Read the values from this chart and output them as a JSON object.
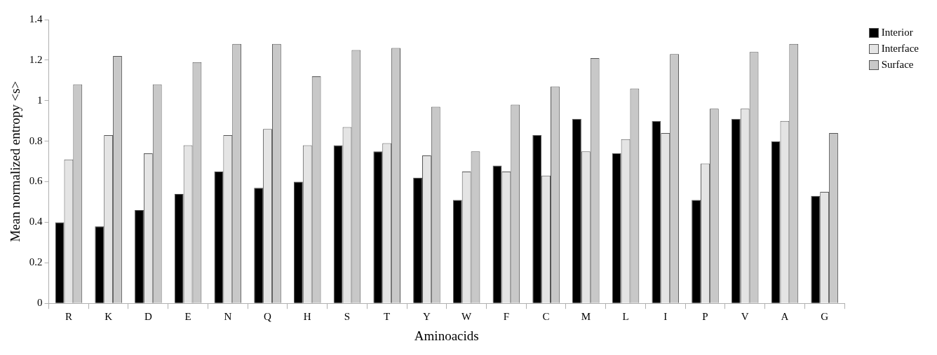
{
  "chart_data": {
    "type": "bar",
    "xlabel": "Aminoacids",
    "ylabel": "Mean normalized entropy <s>",
    "categories": [
      "R",
      "K",
      "D",
      "E",
      "N",
      "Q",
      "H",
      "S",
      "T",
      "Y",
      "W",
      "F",
      "C",
      "M",
      "L",
      "I",
      "P",
      "V",
      "A",
      "G"
    ],
    "series": [
      {
        "name": "Interior",
        "color": "#000000",
        "values": [
          0.4,
          0.38,
          0.46,
          0.54,
          0.65,
          0.57,
          0.6,
          0.78,
          0.75,
          0.62,
          0.51,
          0.68,
          0.83,
          0.91,
          0.74,
          0.9,
          0.51,
          0.91,
          0.8,
          0.53
        ]
      },
      {
        "name": "Interface",
        "color": "#e4e4e4",
        "values": [
          0.71,
          0.83,
          0.74,
          0.78,
          0.83,
          0.86,
          0.78,
          0.87,
          0.79,
          0.73,
          0.65,
          0.65,
          0.63,
          0.75,
          0.81,
          0.84,
          0.69,
          0.96,
          0.9,
          0.55
        ]
      },
      {
        "name": "Surface",
        "color": "#c8c8c8",
        "values": [
          1.08,
          1.22,
          1.08,
          1.19,
          1.28,
          1.28,
          1.12,
          1.25,
          1.26,
          0.97,
          0.75,
          0.98,
          1.07,
          1.21,
          1.06,
          1.23,
          0.96,
          1.24,
          1.28,
          0.84
        ]
      }
    ],
    "ylim": [
      0,
      1.4
    ],
    "yticks": [
      0,
      0.2,
      0.4,
      0.6,
      0.8,
      1,
      1.2,
      1.4
    ],
    "grid": false,
    "legend": "top right"
  }
}
